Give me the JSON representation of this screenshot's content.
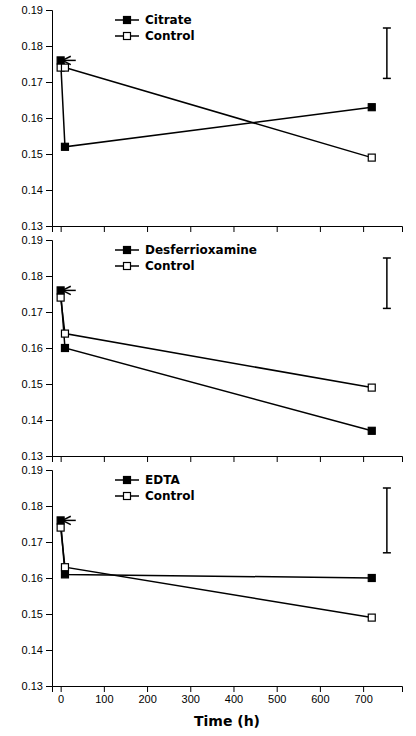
{
  "chart_data": [
    {
      "type": "line",
      "x": [
        0,
        10,
        720
      ],
      "series": [
        {
          "name": "Citrate",
          "color": "#000000",
          "marker": "square",
          "values": [
            0.176,
            0.152,
            0.163
          ]
        },
        {
          "name": "Control",
          "color": "#000000",
          "marker": "square-open",
          "values": [
            0.174,
            0.174,
            0.149
          ]
        }
      ],
      "arrow": {
        "x_start": 35,
        "x_end": 4,
        "y": 0.176
      },
      "error_bar": {
        "x": 755,
        "value": 0.178,
        "error": 0.007
      },
      "xlim": [
        -20,
        790
      ],
      "xticks": [
        0,
        100,
        200,
        300,
        400,
        500,
        600,
        700
      ],
      "ylim": [
        0.13,
        0.19
      ],
      "yticks": [
        0.13,
        0.14,
        0.15,
        0.16,
        0.17,
        0.18,
        0.19
      ],
      "tick_labels": "y",
      "legend": "upper-left",
      "grid": false
    },
    {
      "type": "line",
      "x": [
        0,
        10,
        720
      ],
      "series": [
        {
          "name": "Desferrioxamine",
          "color": "#000000",
          "marker": "square",
          "values": [
            0.176,
            0.16,
            0.137
          ]
        },
        {
          "name": "Control",
          "color": "#000000",
          "marker": "square-open",
          "values": [
            0.174,
            0.164,
            0.149
          ]
        }
      ],
      "arrow": {
        "x_start": 35,
        "x_end": 4,
        "y": 0.176
      },
      "error_bar": {
        "x": 755,
        "value": 0.178,
        "error": 0.007
      },
      "xlim": [
        -20,
        790
      ],
      "xticks": [
        0,
        100,
        200,
        300,
        400,
        500,
        600,
        700
      ],
      "ylim": [
        0.13,
        0.19
      ],
      "yticks": [
        0.13,
        0.14,
        0.15,
        0.16,
        0.17,
        0.18,
        0.19
      ],
      "tick_labels": "y",
      "legend": "upper-left",
      "grid": false
    },
    {
      "type": "line",
      "x_label": "Time (h)",
      "x": [
        0,
        10,
        720
      ],
      "series": [
        {
          "name": "EDTA",
          "color": "#000000",
          "marker": "square",
          "values": [
            0.176,
            0.161,
            0.16
          ]
        },
        {
          "name": "Control",
          "color": "#000000",
          "marker": "square-open",
          "values": [
            0.174,
            0.163,
            0.149
          ]
        }
      ],
      "arrow": {
        "x_start": 35,
        "x_end": 4,
        "y": 0.176
      },
      "error_bar": {
        "x": 755,
        "value": 0.176,
        "error": 0.009
      },
      "xlim": [
        -20,
        790
      ],
      "xticks": [
        0,
        100,
        200,
        300,
        400,
        500,
        600,
        700
      ],
      "ylim": [
        0.13,
        0.19
      ],
      "yticks": [
        0.13,
        0.14,
        0.15,
        0.16,
        0.17,
        0.18,
        0.19
      ],
      "legend": "upper-left",
      "grid": false
    }
  ]
}
